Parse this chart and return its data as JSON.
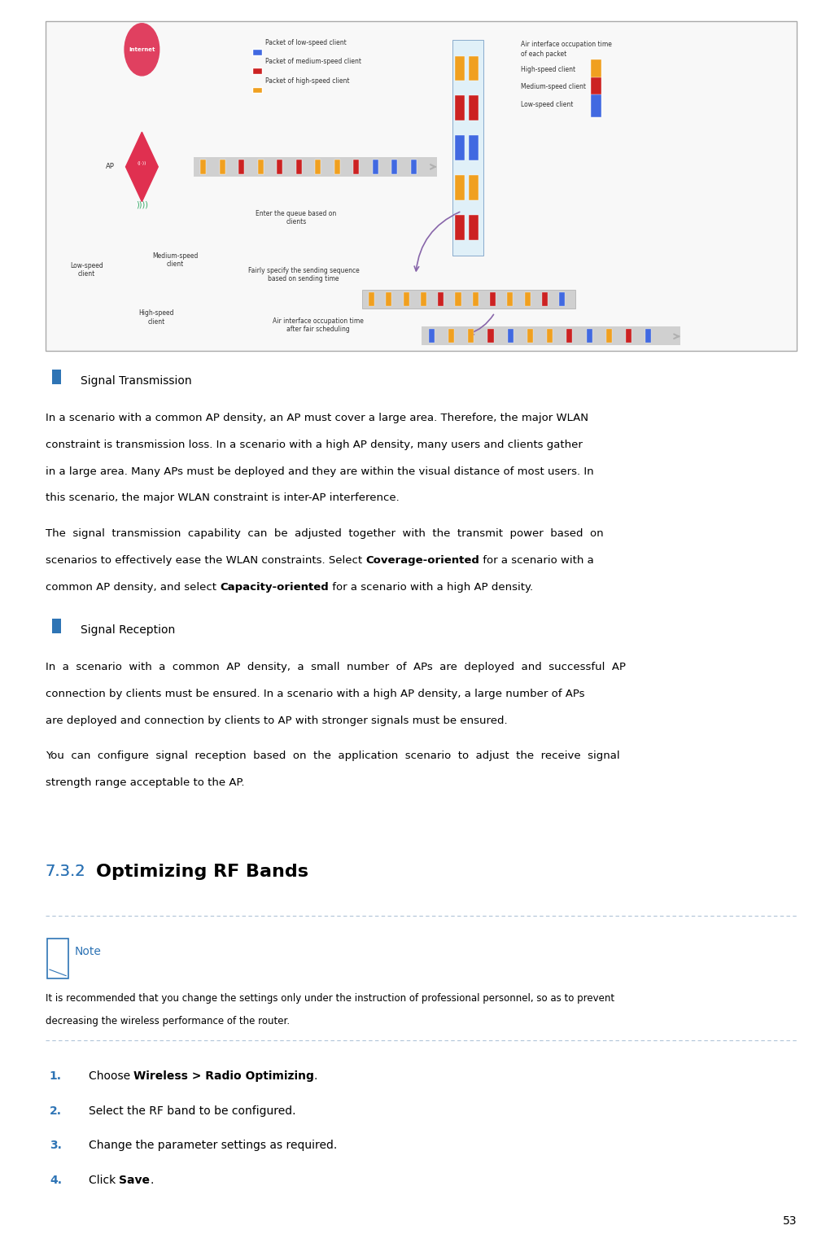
{
  "page_bg": "#ffffff",
  "page_number": "53",
  "bullet_color": "#2e74b5",
  "section_title_color": "#2e74b5",
  "heading_color": "#000000",
  "body_color": "#000000",
  "note_color": "#2e74b5",
  "numbered_color": "#2e74b5",
  "section_heading_prefix": "7.3.2",
  "section_heading_suffix": "Optimizing RF Bands",
  "note_label": "Note",
  "note_text_line1": "It is recommended that you change the settings only under the instruction of professional personnel, so as to prevent",
  "note_text_line2": "decreasing the wireless performance of the router.",
  "bullet1_title": "Signal Transmission",
  "bullet2_title": "Signal Reception",
  "divider_color": "#b0c4d8",
  "legend_colors": [
    "#4169e1",
    "#cc2222",
    "#f0a020"
  ],
  "legend_labels": [
    "Packet of low-speed client",
    "Packet of medium-speed client",
    "Packet of high-speed client"
  ],
  "right_legend_colors": [
    "#f0a020",
    "#cc2222",
    "#4169e1"
  ],
  "right_legend_labels": [
    "High-speed client",
    "Medium-speed client",
    "Low-speed client"
  ],
  "arrow_block_colors1": [
    "#f0a020",
    "#f0a020",
    "#cc2222",
    "#f0a020",
    "#cc2222",
    "#cc2222",
    "#f0a020",
    "#f0a020",
    "#cc2222",
    "#4169e1",
    "#4169e1",
    "#4169e1"
  ],
  "arrow_block_colors2": [
    "#f0a020",
    "#f0a020",
    "#f0a020",
    "#f0a020",
    "#cc2222",
    "#f0a020",
    "#f0a020",
    "#cc2222",
    "#f0a020",
    "#f0a020",
    "#cc2222",
    "#4169e1"
  ],
  "arrow_block_colors3": [
    "#4169e1",
    "#f0a020",
    "#f0a020",
    "#cc2222",
    "#4169e1",
    "#f0a020",
    "#f0a020",
    "#cc2222",
    "#4169e1",
    "#f0a020",
    "#cc2222",
    "#4169e1"
  ]
}
